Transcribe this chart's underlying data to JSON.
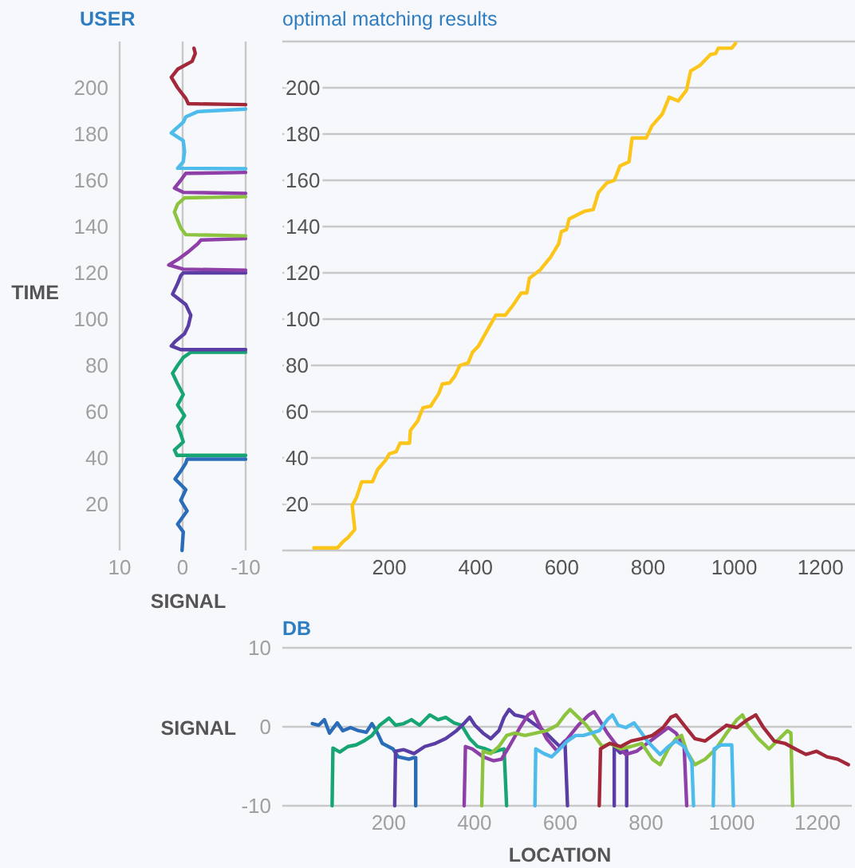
{
  "chart_data": [
    {
      "type": "line",
      "title": "USER",
      "xlabel": "SIGNAL",
      "ylabel": "TIME",
      "xlim": [
        10,
        -10
      ],
      "xticks": [
        10,
        0,
        -10
      ],
      "ylim": [
        0,
        220
      ],
      "yticks": [
        20,
        40,
        60,
        80,
        100,
        120,
        140,
        160,
        180,
        200
      ],
      "grid": "x",
      "series": [
        {
          "color": "#2b6cb8",
          "x": [
            0.1,
            -0.1,
            0.8,
            -0.7,
            0.3,
            -0.5,
            1.2,
            0.3,
            -0.5,
            -0.7,
            -10
          ],
          "values": [
            0,
            8,
            11.4,
            17.1,
            21.7,
            26.3,
            30.9,
            34.3,
            37.7,
            39.5,
            39.5
          ]
        },
        {
          "color": "#17a673",
          "x": [
            -10,
            0.9,
            1.3,
            -0.1,
            0.3,
            0.8,
            -0.3,
            0.8,
            -0.1,
            0.8,
            1.6,
            0.8,
            -0.1,
            -1.3,
            -10
          ],
          "values": [
            41.1,
            41.1,
            43.4,
            46.9,
            50.3,
            53.7,
            58.3,
            62.9,
            67.4,
            72,
            76.6,
            80,
            83.4,
            85.7,
            85.7
          ]
        },
        {
          "color": "#5a3ea6",
          "x": [
            -10,
            0.3,
            1.8,
            1.2,
            -0.3,
            -0.9,
            -1.3,
            -0.5,
            1.6,
            0.8,
            0.3,
            -0.1,
            -10
          ],
          "values": [
            86.8,
            86.8,
            88.4,
            90.3,
            93.7,
            97.1,
            101.7,
            106.3,
            110.8,
            115.4,
            118.8,
            120,
            120
          ]
        },
        {
          "color": "#8e3fa8",
          "x": [
            -10,
            -0.1,
            2.2,
            0.8,
            -0.9,
            -2.4,
            -2.9,
            -10,
            null,
            -10,
            -0.1,
            1.3,
            0.3,
            -0.5,
            -10
          ],
          "values": [
            121.1,
            121.6,
            123.4,
            125.7,
            129.1,
            132.6,
            134.2,
            134.8,
            null,
            154.3,
            154.8,
            156.6,
            160,
            163,
            163.4
          ]
        },
        {
          "color": "#8cc43f",
          "x": [
            -10,
            -0.5,
            0.3,
            0.8,
            1.3,
            0.8,
            -0.3,
            -10
          ],
          "values": [
            136,
            136.5,
            139.4,
            142.8,
            146.3,
            149.7,
            152.4,
            152.9
          ]
        },
        {
          "color": "#4dbbeb",
          "x": [
            -10,
            0.8,
            -0.1,
            -0.3,
            -0.1,
            1.8,
            -0.1,
            -0.5,
            -2.4,
            -10
          ],
          "values": [
            165,
            165.2,
            168,
            172.5,
            177.1,
            180.5,
            185.1,
            187.4,
            189.7,
            190.8
          ]
        },
        {
          "color": "#a3293a",
          "x": [
            -10,
            -0.9,
            -0.5,
            0.8,
            1.8,
            0.8,
            -1.5,
            -2,
            -1.8
          ],
          "values": [
            192.7,
            193.1,
            195.4,
            200,
            204.5,
            208,
            211.4,
            214.8,
            217.1
          ]
        }
      ]
    },
    {
      "type": "line",
      "title": "optimal matching results",
      "xlim": [
        -48,
        1280
      ],
      "xticks": [
        200,
        400,
        600,
        800,
        1000,
        1200
      ],
      "ylim": [
        0,
        220
      ],
      "yticks": [
        {
          "value": 0,
          "label": null
        },
        20,
        40,
        60,
        80,
        100,
        120,
        140,
        160,
        180,
        200,
        {
          "value": 220,
          "label": null
        }
      ],
      "grid": "y",
      "color": "#fcc51a",
      "x": [
        25,
        80,
        93,
        105,
        120,
        114,
        124,
        136,
        161,
        173,
        191,
        200,
        216,
        225,
        247,
        249,
        266,
        278,
        296,
        315,
        323,
        340,
        352,
        364,
        383,
        393,
        407,
        426,
        447,
        469,
        488,
        506,
        519,
        525,
        549,
        574,
        593,
        599,
        611,
        617,
        636,
        654,
        673,
        685,
        704,
        722,
        735,
        756,
        763,
        796,
        809,
        833,
        849,
        870,
        889,
        899,
        920,
        945,
        957,
        963,
        994,
        1003
      ],
      "values": [
        1.1,
        1.1,
        3.9,
        5.7,
        9.1,
        19.4,
        22.9,
        29.7,
        29.7,
        35,
        38.9,
        41.8,
        42.7,
        46.4,
        46.4,
        51.9,
        56,
        61.7,
        62.4,
        67.9,
        72,
        72.4,
        75.4,
        80,
        81.1,
        85.7,
        88.4,
        94.8,
        101.7,
        101.7,
        106.3,
        111.3,
        111.3,
        117.7,
        121.1,
        126.8,
        132.6,
        137.8,
        138.7,
        143.3,
        145.1,
        146.7,
        147.4,
        154.7,
        158.8,
        160,
        166.2,
        168,
        178.3,
        178.3,
        183.5,
        188.6,
        195.9,
        194.3,
        198.8,
        207.3,
        209.6,
        214.4,
        214.8,
        217.1,
        217.1,
        219.2
      ]
    },
    {
      "type": "line",
      "title": "DB",
      "xlabel": "LOCATION",
      "ylabel": "SIGNAL",
      "xlim": [
        -48,
        1280
      ],
      "xticks": [
        200,
        400,
        600,
        800,
        1000,
        1200
      ],
      "ylim": [
        -10,
        10
      ],
      "yticks": [
        -10,
        0,
        10
      ],
      "grid": "y",
      "series": [
        {
          "color": "#2b6cb8",
          "x": [
            22,
            37,
            50,
            62,
            80,
            93,
            111,
            130,
            148,
            161,
            173,
            185,
            210,
            222,
            247,
            259,
            263,
            263
          ],
          "values": [
            0.4,
            0.2,
            0.9,
            -0.8,
            0.5,
            -0.5,
            -0.1,
            -0.5,
            -0.7,
            0.4,
            -0.7,
            -2.1,
            -2.8,
            -3.8,
            -4.1,
            -3.9,
            -3.9,
            -10
          ]
        },
        {
          "color": "#17a673",
          "x": [
            68,
            70,
            86,
            105,
            124,
            142,
            161,
            179,
            201,
            216,
            235,
            253,
            272,
            296,
            315,
            333,
            352,
            370,
            389,
            407,
            426,
            444,
            469,
            475
          ],
          "values": [
            -10,
            -2.7,
            -3.2,
            -2.5,
            -2.3,
            -1.8,
            -1.1,
            0.2,
            1.1,
            0.2,
            0.4,
            0.9,
            0.2,
            1.5,
            0.9,
            1.2,
            0.5,
            0.2,
            -1.5,
            -2.5,
            -2.8,
            -3.2,
            -2.8,
            -10
          ]
        },
        {
          "color": "#5a3ea6",
          "x": [
            214,
            216,
            235,
            259,
            284,
            309,
            333,
            358,
            377,
            389,
            401,
            420,
            438,
            457,
            469,
            481,
            494,
            518,
            543,
            562,
            580,
            599,
            611,
            617,
            null,
            726,
            726,
            740,
            755,
            755
          ],
          "values": [
            -10,
            -3.1,
            -2.9,
            -3.4,
            -2.5,
            -2.1,
            -1.5,
            -0.5,
            0.5,
            1.2,
            0.2,
            -0.8,
            -1.5,
            -0.5,
            1.2,
            2.2,
            1.5,
            1.2,
            0.2,
            -0.5,
            -1.5,
            -2.5,
            -1.8,
            -10,
            null,
            -10,
            -2.5,
            -3.3,
            -3.0,
            -10
          ]
        },
        {
          "color": "#8e3fa8",
          "x": [
            376,
            379,
            395,
            420,
            444,
            463,
            481,
            506,
            525,
            537,
            549,
            568,
            593,
            617,
            642,
            667,
            679,
            691,
            710,
            728,
            753,
            778,
            803,
            827,
            852,
            870,
            889,
            895
          ],
          "values": [
            -10,
            -2.5,
            -2.8,
            -3.8,
            -4.3,
            -4.1,
            -2.5,
            -0.1,
            1.5,
            1.9,
            0.5,
            -1.5,
            -3.1,
            -1.5,
            0.2,
            1.5,
            1.9,
            0.9,
            -0.8,
            -2.1,
            -3.5,
            -3.1,
            -2.1,
            -1.1,
            -0.1,
            -0.8,
            -2.5,
            -10
          ]
        },
        {
          "color": "#8cc43f",
          "x": [
            417,
            420,
            438,
            457,
            475,
            494,
            518,
            543,
            568,
            593,
            611,
            623,
            642,
            661,
            679,
            698,
            716,
            741,
            765,
            790,
            815,
            833,
            852,
            870,
            883,
            895,
            914,
            938,
            963,
            988,
            1012,
            1025,
            1037,
            1062,
            1087,
            1111,
            1130,
            1138,
            1142
          ],
          "values": [
            -10,
            -3.1,
            -3.4,
            -2.5,
            -1.1,
            -0.8,
            -1.1,
            -0.8,
            -0.5,
            0.2,
            1.5,
            2.2,
            1.2,
            0.2,
            -1.1,
            -2.5,
            -2.1,
            -2.8,
            -2.5,
            -2.1,
            -4.1,
            -4.8,
            -2.8,
            -1.5,
            -1.1,
            -3.1,
            -4.8,
            -4.1,
            -2.8,
            -0.8,
            0.9,
            1.5,
            0.2,
            -1.5,
            -2.8,
            -1.5,
            -0.5,
            -0.8,
            -10
          ]
        },
        {
          "color": "#4dbbeb",
          "x": [
            541,
            543,
            562,
            580,
            599,
            617,
            636,
            654,
            673,
            691,
            710,
            722,
            735,
            753,
            772,
            790,
            803,
            815,
            833,
            852,
            870,
            889,
            907,
            911,
            null,
            957,
            959,
            975,
            1000,
            1004
          ],
          "values": [
            -10,
            -2.8,
            -3.4,
            -3.8,
            -2.8,
            -1.8,
            -1.1,
            -1.1,
            -0.8,
            -0.5,
            0.9,
            1.5,
            0.2,
            -0.1,
            0.5,
            -0.8,
            -1.8,
            -2.5,
            -3.5,
            -2.5,
            -1.8,
            -2.5,
            -4.5,
            -10,
            null,
            -10,
            -2.8,
            -2.3,
            -2.3,
            -10
          ]
        },
        {
          "color": "#a3293a",
          "x": [
            691,
            694,
            716,
            741,
            765,
            790,
            815,
            840,
            858,
            870,
            889,
            914,
            938,
            963,
            988,
            1012,
            1037,
            1056,
            1074,
            1099,
            1124,
            1148,
            1173,
            1198,
            1222,
            1247,
            1272
          ],
          "values": [
            -10,
            -2.8,
            -2.1,
            -2.5,
            -1.8,
            -1.5,
            -1.1,
            -0.1,
            1.2,
            1.5,
            0.2,
            -1.5,
            -1.8,
            -0.8,
            0.2,
            -0.1,
            0.9,
            1.5,
            -0.1,
            -1.8,
            -2.1,
            -2.8,
            -3.5,
            -3.1,
            -3.8,
            -4.1,
            -4.8
          ]
        }
      ]
    }
  ]
}
